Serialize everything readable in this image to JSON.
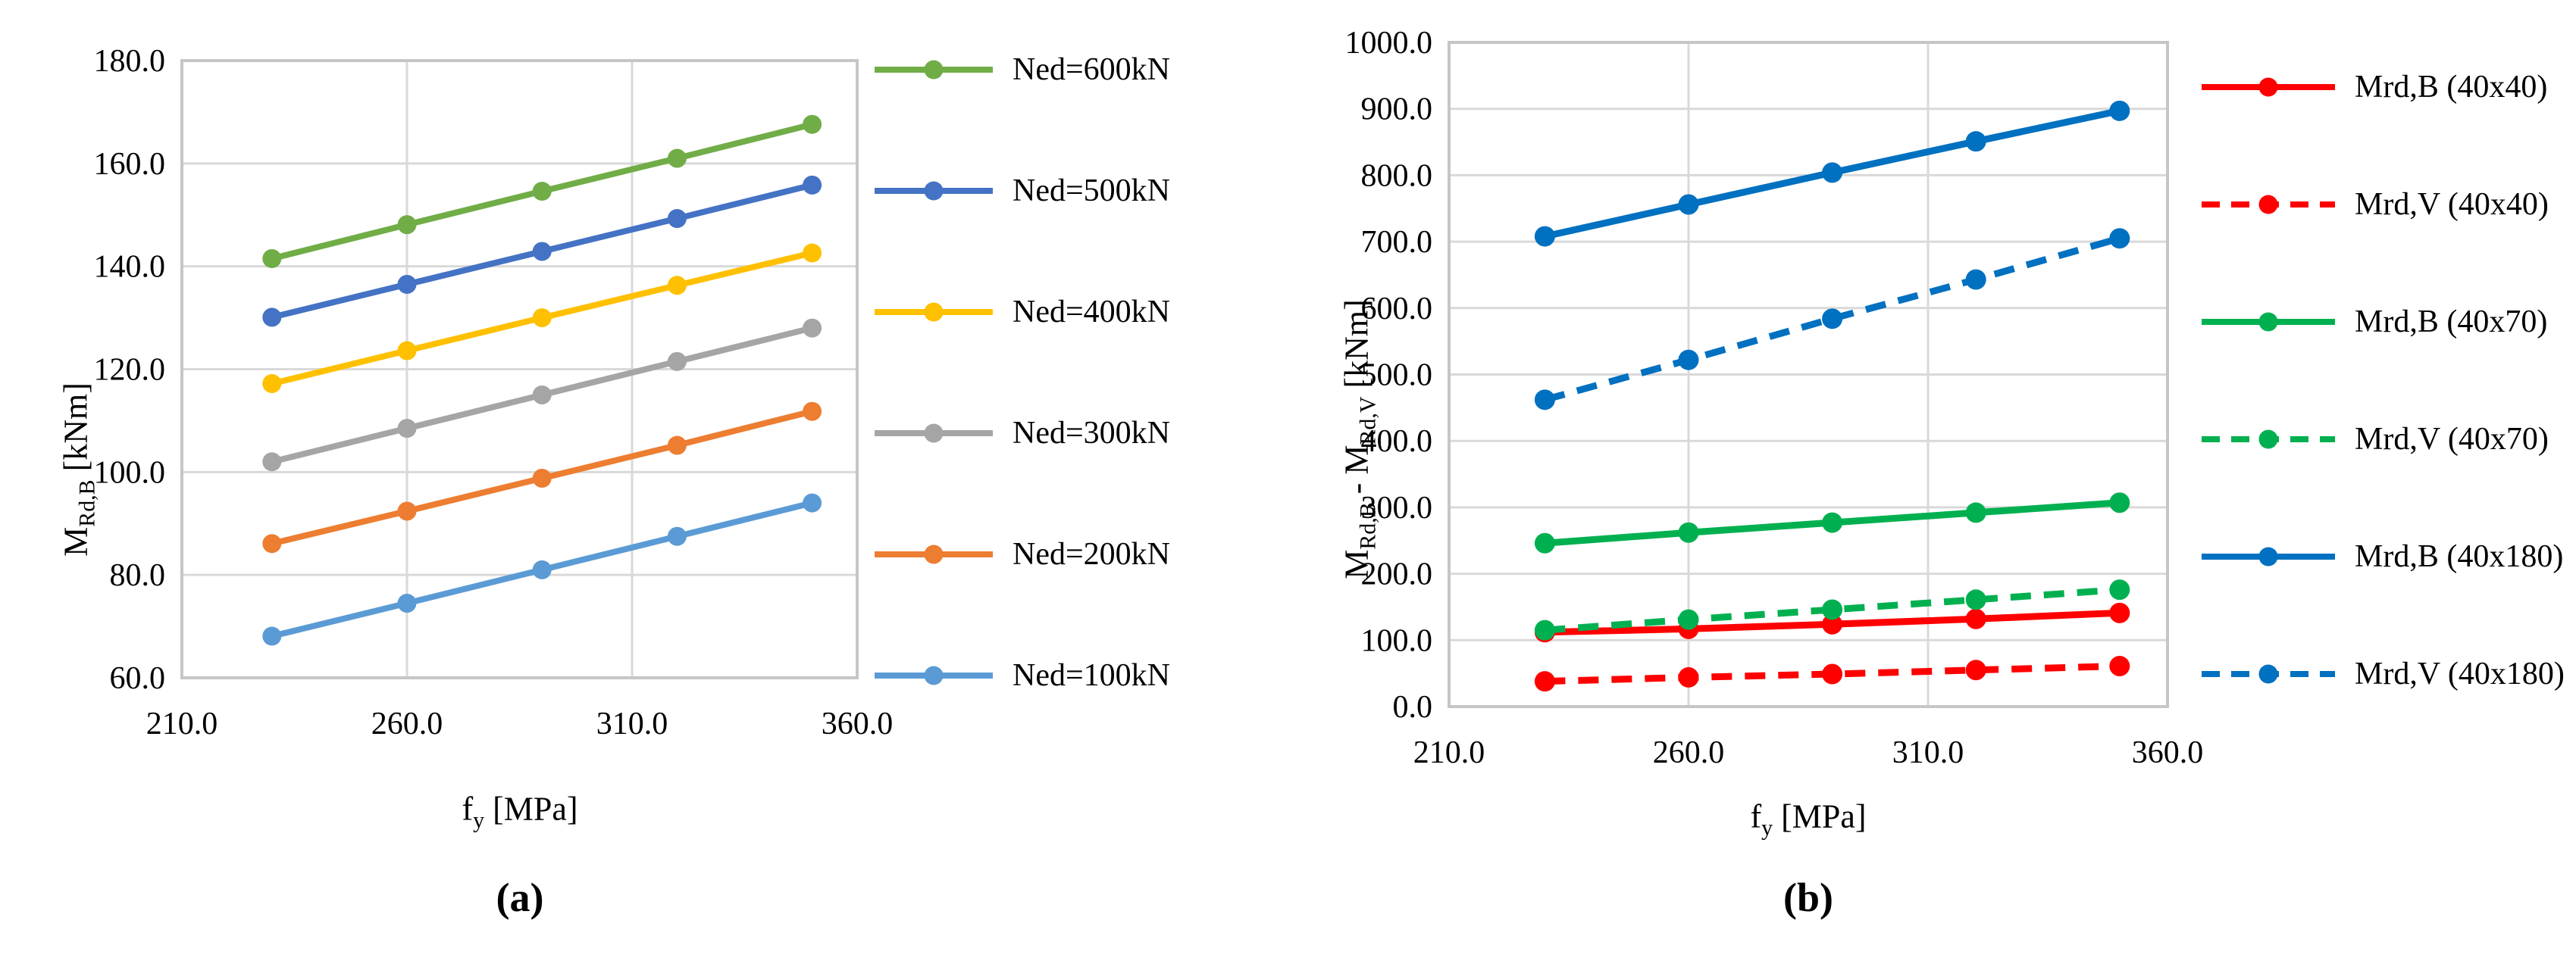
{
  "figure": {
    "background": "#FFFFFF",
    "grid_color": "#D9D9D9",
    "border_color": "#C6C6C6"
  },
  "charts": [
    {
      "name": "a",
      "caption": "(a)",
      "y_axis_title": [
        {
          "t": "M"
        },
        {
          "s": "Rd,B"
        },
        {
          "t": " [kNm]"
        }
      ],
      "x_axis_title": [
        {
          "t": "f"
        },
        {
          "s": "y"
        },
        {
          "t": " [MPa]"
        }
      ],
      "chart_data": {
        "type": "line",
        "title": "",
        "x": [
          230,
          260,
          290,
          320,
          350
        ],
        "xlabel": "fy [MPa]",
        "ylabel": "MRd,B [kNm]",
        "xlim": [
          210,
          360
        ],
        "ylim": [
          60,
          180
        ],
        "x_tick_values": [
          210,
          260,
          310,
          360
        ],
        "x_tick_labels": [
          "210.0",
          "260.0",
          "310.0",
          "360.0"
        ],
        "y_tick_values": [
          180,
          160,
          140,
          120,
          100,
          80,
          60
        ],
        "y_tick_labels": [
          "180.0",
          "160.0",
          "140.0",
          "120.0",
          "100.0",
          "80.0",
          "60.0"
        ],
        "grid": true,
        "legend_position": "right",
        "series": [
          {
            "name": "Ned=600kN",
            "color": "#70AD47",
            "dash": false,
            "values": [
              141.5,
              148.1,
              154.6,
              161.0,
              167.6
            ]
          },
          {
            "name": "Ned=500kN",
            "color": "#4472C4",
            "dash": false,
            "values": [
              130.1,
              136.5,
              142.9,
              149.3,
              155.8
            ]
          },
          {
            "name": "Ned=400kN",
            "color": "#FFC000",
            "dash": false,
            "values": [
              117.2,
              123.6,
              130.0,
              136.3,
              142.6
            ]
          },
          {
            "name": "Ned=300kN",
            "color": "#A5A5A5",
            "dash": false,
            "values": [
              102.0,
              108.5,
              115.0,
              121.5,
              128.0
            ]
          },
          {
            "name": "Ned=200kN",
            "color": "#ED7D31",
            "dash": false,
            "values": [
              86.1,
              92.4,
              98.8,
              105.2,
              111.8
            ]
          },
          {
            "name": "Ned=100kN",
            "color": "#5B9BD5",
            "dash": false,
            "values": [
              68.1,
              74.5,
              81.0,
              87.5,
              94.0
            ]
          }
        ]
      }
    },
    {
      "name": "b",
      "caption": "(b)",
      "y_axis_title": [
        {
          "t": "M"
        },
        {
          "s": "Rd,B"
        },
        {
          "t": " - M"
        },
        {
          "s": "Rd,V"
        },
        {
          "t": " [kNm]"
        }
      ],
      "x_axis_title": [
        {
          "t": "f"
        },
        {
          "s": "y"
        },
        {
          "t": " [MPa]"
        }
      ],
      "chart_data": {
        "type": "line",
        "title": "",
        "x": [
          230,
          260,
          290,
          320,
          350
        ],
        "xlabel": "fy [MPa]",
        "ylabel": "MRd,B - MRd,V [kNm]",
        "xlim": [
          210,
          360
        ],
        "ylim": [
          0,
          1000
        ],
        "x_tick_values": [
          210,
          260,
          310,
          360
        ],
        "x_tick_labels": [
          "210.0",
          "260.0",
          "310.0",
          "360.0"
        ],
        "y_tick_values": [
          1000,
          900,
          800,
          700,
          600,
          500,
          400,
          300,
          200,
          100,
          0
        ],
        "y_tick_labels": [
          "1000.0",
          "900.0",
          "800.0",
          "700.0",
          "600.0",
          "500.0",
          "400.0",
          "300.0",
          "200.0",
          "100.0",
          "0.0"
        ],
        "grid": true,
        "legend_position": "right",
        "series": [
          {
            "name": "Mrd,B (40x40)",
            "color": "#FF0000",
            "dash": false,
            "values": [
              112,
              117,
              124,
              132,
              141
            ]
          },
          {
            "name": "Mrd,V (40x40)",
            "color": "#FF0000",
            "dash": true,
            "values": [
              38,
              44,
              49,
              55,
              61
            ]
          },
          {
            "name": "Mrd,B (40x70)",
            "color": "#00B050",
            "dash": false,
            "values": [
              246,
              262,
              277,
              292,
              307
            ]
          },
          {
            "name": "Mrd,V (40x70)",
            "color": "#00B050",
            "dash": true,
            "values": [
              115,
              131,
              146,
              161,
              176
            ]
          },
          {
            "name": "Mrd,B (40x180)",
            "color": "#0070C0",
            "dash": false,
            "values": [
              708,
              756,
              804,
              851,
              897
            ]
          },
          {
            "name": "Mrd,V (40x180)",
            "color": "#0070C0",
            "dash": true,
            "values": [
              462,
              522,
              584,
              643,
              705
            ]
          }
        ]
      }
    }
  ]
}
